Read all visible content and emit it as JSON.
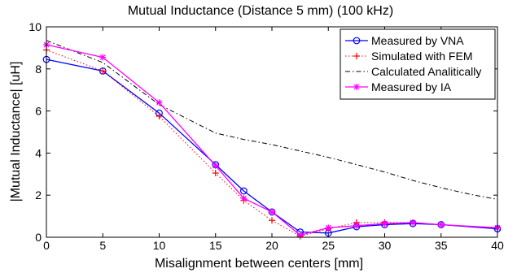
{
  "chart_data": {
    "type": "line",
    "title": "Mutual Inductance (Distance 5 mm) (100 kHz)",
    "xlabel": "Misalignment between centers [mm]",
    "ylabel": "|Mutual Inductance| [uH]",
    "xlim": [
      0,
      40
    ],
    "ylim": [
      0,
      10
    ],
    "xticks": [
      0,
      5,
      10,
      15,
      20,
      25,
      30,
      35,
      40
    ],
    "yticks": [
      0,
      2,
      4,
      6,
      8,
      10
    ],
    "grid": false,
    "legend_position": "top-right",
    "series": [
      {
        "name": "Measured by VNA",
        "color": "#0000ff",
        "line_style": "solid",
        "marker": "circle",
        "x": [
          0,
          5,
          10,
          15,
          17.5,
          20,
          22.5,
          25,
          27.5,
          30,
          32.5,
          35,
          40
        ],
        "y": [
          8.45,
          7.9,
          5.9,
          3.45,
          2.2,
          1.2,
          0.25,
          0.2,
          0.5,
          0.6,
          0.65,
          0.6,
          0.4
        ]
      },
      {
        "name": "Simulated with FEM",
        "color": "#ff0000",
        "line_style": "dotted",
        "marker": "plus",
        "x": [
          0,
          5,
          10,
          15,
          17.5,
          20,
          22.5,
          25,
          27.5,
          30,
          32.5,
          35,
          40
        ],
        "y": [
          8.9,
          7.9,
          5.75,
          3.05,
          1.75,
          0.8,
          0.05,
          0.4,
          0.7,
          0.7,
          0.7,
          0.6,
          0.45
        ]
      },
      {
        "name": "Calculated Analitically",
        "color": "#000000",
        "line_style": "dashdot",
        "marker": "none",
        "x": [
          0,
          5,
          10,
          15,
          17.5,
          20,
          22.5,
          25,
          27.5,
          30,
          32.5,
          35,
          37.5,
          40
        ],
        "y": [
          9.35,
          8.3,
          6.3,
          4.95,
          4.65,
          4.4,
          4.1,
          3.8,
          3.45,
          3.1,
          2.7,
          2.35,
          2.05,
          1.8
        ]
      },
      {
        "name": "Measured by IA",
        "color": "#ff00ff",
        "line_style": "solid",
        "marker": "star",
        "x": [
          0,
          5,
          10,
          15,
          17.5,
          20,
          22.5,
          25,
          27.5,
          30,
          32.5,
          35,
          40
        ],
        "y": [
          9.15,
          8.55,
          6.4,
          3.4,
          1.85,
          1.2,
          0.1,
          0.45,
          0.55,
          0.65,
          0.7,
          0.6,
          0.45
        ]
      }
    ]
  }
}
